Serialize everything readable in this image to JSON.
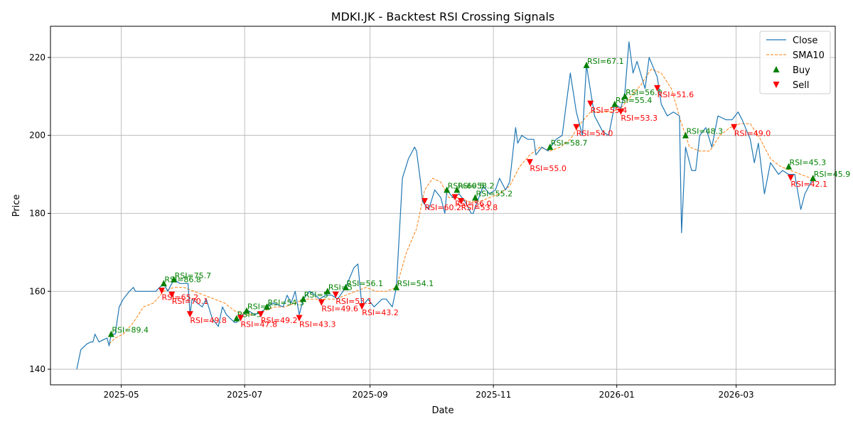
{
  "chart_data": {
    "type": "line",
    "title": "MDKI.JK - Backtest RSI Crossing Signals",
    "xlabel": "Date",
    "ylabel": "Price",
    "xlim": [
      "2025-03-27",
      "2026-04-19"
    ],
    "ylim": [
      136,
      228
    ],
    "x_ticks": [
      {
        "date": "2025-05-01",
        "label": "2025-05"
      },
      {
        "date": "2025-07-01",
        "label": "2025-07"
      },
      {
        "date": "2025-09-01",
        "label": "2025-09"
      },
      {
        "date": "2025-11-01",
        "label": "2025-11"
      },
      {
        "date": "2026-01-01",
        "label": "2026-01"
      },
      {
        "date": "2026-03-01",
        "label": "2026-03"
      }
    ],
    "y_ticks": [
      140,
      160,
      180,
      200,
      220
    ],
    "grid": true,
    "legend_position": "top-right",
    "legend": [
      "Close",
      "SMA10",
      "Buy",
      "Sell"
    ],
    "colors": {
      "close": "#1f77b4",
      "sma": "#ff7f0e",
      "buy": "#008000",
      "sell": "#ff0000"
    },
    "series": [
      {
        "name": "Close",
        "points": [
          [
            "2025-04-09",
            140
          ],
          [
            "2025-04-11",
            145
          ],
          [
            "2025-04-14",
            146.5
          ],
          [
            "2025-04-16",
            147
          ],
          [
            "2025-04-17",
            147
          ],
          [
            "2025-04-18",
            149
          ],
          [
            "2025-04-20",
            147
          ],
          [
            "2025-04-24",
            148
          ],
          [
            "2025-04-25",
            146
          ],
          [
            "2025-04-26",
            149
          ],
          [
            "2025-04-28",
            149
          ],
          [
            "2025-04-30",
            156
          ],
          [
            "2025-05-02",
            158
          ],
          [
            "2025-05-05",
            160
          ],
          [
            "2025-05-07",
            161
          ],
          [
            "2025-05-08",
            160
          ],
          [
            "2025-05-15",
            160
          ],
          [
            "2025-05-18",
            160
          ],
          [
            "2025-05-20",
            161
          ],
          [
            "2025-05-22",
            162
          ],
          [
            "2025-05-24",
            160
          ],
          [
            "2025-05-27",
            163
          ],
          [
            "2025-05-30",
            162
          ],
          [
            "2025-06-03",
            162
          ],
          [
            "2025-06-04",
            154
          ],
          [
            "2025-06-05",
            158
          ],
          [
            "2025-06-10",
            156
          ],
          [
            "2025-06-12",
            158
          ],
          [
            "2025-06-15",
            153
          ],
          [
            "2025-06-18",
            151
          ],
          [
            "2025-06-20",
            156
          ],
          [
            "2025-06-22",
            154
          ],
          [
            "2025-06-26",
            152
          ],
          [
            "2025-06-27",
            152
          ],
          [
            "2025-06-30",
            154
          ],
          [
            "2025-07-03",
            155
          ],
          [
            "2025-07-06",
            154
          ],
          [
            "2025-07-10",
            155
          ],
          [
            "2025-07-15",
            157
          ],
          [
            "2025-07-20",
            156
          ],
          [
            "2025-07-22",
            159
          ],
          [
            "2025-07-24",
            157
          ],
          [
            "2025-07-26",
            160
          ],
          [
            "2025-07-28",
            154
          ],
          [
            "2025-07-30",
            158
          ],
          [
            "2025-08-02",
            160
          ],
          [
            "2025-08-05",
            159
          ],
          [
            "2025-08-07",
            158
          ],
          [
            "2025-08-10",
            159
          ],
          [
            "2025-08-13",
            159
          ],
          [
            "2025-08-16",
            158
          ],
          [
            "2025-08-20",
            161
          ],
          [
            "2025-08-24",
            166
          ],
          [
            "2025-08-26",
            167
          ],
          [
            "2025-08-28",
            156
          ],
          [
            "2025-08-31",
            158
          ],
          [
            "2025-09-03",
            156
          ],
          [
            "2025-09-07",
            158
          ],
          [
            "2025-09-09",
            158
          ],
          [
            "2025-09-12",
            156
          ],
          [
            "2025-09-14",
            161
          ],
          [
            "2025-09-17",
            189
          ],
          [
            "2025-09-20",
            194
          ],
          [
            "2025-09-23",
            197
          ],
          [
            "2025-09-24",
            196
          ],
          [
            "2025-09-26",
            188
          ],
          [
            "2025-09-27",
            183
          ],
          [
            "2025-09-30",
            181
          ],
          [
            "2025-10-03",
            186
          ],
          [
            "2025-10-06",
            184
          ],
          [
            "2025-10-08",
            180
          ],
          [
            "2025-10-09",
            186
          ],
          [
            "2025-10-12",
            184
          ],
          [
            "2025-10-15",
            185
          ],
          [
            "2025-10-18",
            183
          ],
          [
            "2025-10-21",
            180
          ],
          [
            "2025-10-22",
            180
          ],
          [
            "2025-10-24",
            183
          ],
          [
            "2025-10-27",
            187
          ],
          [
            "2025-10-30",
            185
          ],
          [
            "2025-11-02",
            186
          ],
          [
            "2025-11-04",
            189
          ],
          [
            "2025-11-07",
            186
          ],
          [
            "2025-11-09",
            188
          ],
          [
            "2025-11-12",
            202
          ],
          [
            "2025-11-13",
            198
          ],
          [
            "2025-11-15",
            200
          ],
          [
            "2025-11-18",
            199
          ],
          [
            "2025-11-21",
            199
          ],
          [
            "2025-11-22",
            195
          ],
          [
            "2025-11-25",
            197
          ],
          [
            "2025-11-28",
            196
          ],
          [
            "2025-12-02",
            199
          ],
          [
            "2025-12-05",
            200
          ],
          [
            "2025-12-09",
            216
          ],
          [
            "2025-12-12",
            206
          ],
          [
            "2025-12-15",
            200
          ],
          [
            "2025-12-17",
            218
          ],
          [
            "2025-12-21",
            205
          ],
          [
            "2025-12-25",
            201
          ],
          [
            "2025-12-28",
            200
          ],
          [
            "2025-12-31",
            208
          ],
          [
            "2026-01-03",
            207
          ],
          [
            "2026-01-05",
            211
          ],
          [
            "2026-01-07",
            224
          ],
          [
            "2026-01-09",
            216
          ],
          [
            "2026-01-11",
            219
          ],
          [
            "2026-01-15",
            212
          ],
          [
            "2026-01-17",
            220
          ],
          [
            "2026-01-21",
            215
          ],
          [
            "2026-01-23",
            208
          ],
          [
            "2026-01-26",
            205
          ],
          [
            "2026-01-29",
            206
          ],
          [
            "2026-02-01",
            205
          ],
          [
            "2026-02-02",
            175
          ],
          [
            "2026-02-04",
            197
          ],
          [
            "2026-02-07",
            191
          ],
          [
            "2026-02-09",
            191
          ],
          [
            "2026-02-11",
            200
          ],
          [
            "2026-02-14",
            202
          ],
          [
            "2026-02-17",
            197
          ],
          [
            "2026-02-20",
            205
          ],
          [
            "2026-02-24",
            204
          ],
          [
            "2026-02-27",
            204
          ],
          [
            "2026-03-02",
            206
          ],
          [
            "2026-03-04",
            204
          ],
          [
            "2026-03-08",
            199
          ],
          [
            "2026-03-10",
            193
          ],
          [
            "2026-03-12",
            198
          ],
          [
            "2026-03-15",
            185
          ],
          [
            "2026-03-18",
            193
          ],
          [
            "2026-03-22",
            190
          ],
          [
            "2026-03-24",
            191
          ],
          [
            "2026-03-27",
            190
          ],
          [
            "2026-03-30",
            190
          ],
          [
            "2026-04-02",
            181
          ],
          [
            "2026-04-04",
            185
          ],
          [
            "2026-04-08",
            189
          ]
        ]
      },
      {
        "name": "SMA10",
        "points": [
          [
            "2025-04-25",
            146.5
          ],
          [
            "2025-04-28",
            148
          ],
          [
            "2025-05-02",
            149
          ],
          [
            "2025-05-07",
            152
          ],
          [
            "2025-05-12",
            156
          ],
          [
            "2025-05-17",
            157
          ],
          [
            "2025-05-22",
            160
          ],
          [
            "2025-05-27",
            161
          ],
          [
            "2025-06-01",
            161
          ],
          [
            "2025-06-06",
            160
          ],
          [
            "2025-06-11",
            159
          ],
          [
            "2025-06-16",
            158
          ],
          [
            "2025-06-21",
            157
          ],
          [
            "2025-06-26",
            155
          ],
          [
            "2025-07-01",
            154
          ],
          [
            "2025-07-06",
            154
          ],
          [
            "2025-07-11",
            155
          ],
          [
            "2025-07-16",
            156
          ],
          [
            "2025-07-21",
            156
          ],
          [
            "2025-07-26",
            157
          ],
          [
            "2025-07-31",
            158
          ],
          [
            "2025-08-05",
            158
          ],
          [
            "2025-08-10",
            158
          ],
          [
            "2025-08-15",
            158
          ],
          [
            "2025-08-20",
            159
          ],
          [
            "2025-08-25",
            160
          ],
          [
            "2025-08-30",
            161
          ],
          [
            "2025-09-04",
            160
          ],
          [
            "2025-09-09",
            160
          ],
          [
            "2025-09-14",
            161
          ],
          [
            "2025-09-19",
            170
          ],
          [
            "2025-09-24",
            176
          ],
          [
            "2025-09-28",
            186
          ],
          [
            "2025-10-02",
            189
          ],
          [
            "2025-10-06",
            188
          ],
          [
            "2025-10-10",
            184
          ],
          [
            "2025-10-15",
            184
          ],
          [
            "2025-10-20",
            183
          ],
          [
            "2025-10-25",
            183
          ],
          [
            "2025-10-30",
            184
          ],
          [
            "2025-11-04",
            185
          ],
          [
            "2025-11-09",
            187
          ],
          [
            "2025-11-14",
            192
          ],
          [
            "2025-11-19",
            195
          ],
          [
            "2025-11-24",
            197
          ],
          [
            "2025-11-29",
            196
          ],
          [
            "2025-12-04",
            197
          ],
          [
            "2025-12-09",
            199
          ],
          [
            "2025-12-14",
            203
          ],
          [
            "2025-12-19",
            206
          ],
          [
            "2025-12-24",
            206
          ],
          [
            "2025-12-29",
            206
          ],
          [
            "2026-01-03",
            207
          ],
          [
            "2026-01-08",
            210
          ],
          [
            "2026-01-13",
            213
          ],
          [
            "2026-01-18",
            217
          ],
          [
            "2026-01-23",
            216
          ],
          [
            "2026-01-28",
            212
          ],
          [
            "2026-02-02",
            203
          ],
          [
            "2026-02-06",
            197
          ],
          [
            "2026-02-11",
            196
          ],
          [
            "2026-02-16",
            196
          ],
          [
            "2026-02-21",
            200
          ],
          [
            "2026-02-26",
            202
          ],
          [
            "2026-03-03",
            203
          ],
          [
            "2026-03-08",
            203
          ],
          [
            "2026-03-13",
            199
          ],
          [
            "2026-03-18",
            194
          ],
          [
            "2026-03-23",
            192
          ],
          [
            "2026-03-28",
            191
          ],
          [
            "2026-04-02",
            190
          ],
          [
            "2026-04-07",
            189
          ]
        ]
      },
      {
        "name": "Buy",
        "points": [
          [
            "2025-04-26",
            149,
            "RSI=89.4"
          ],
          [
            "2025-05-22",
            162,
            "RSI=86.8"
          ],
          [
            "2025-05-27",
            163,
            "RSI=75.7"
          ],
          [
            "2025-06-27",
            153,
            "RSI=5"
          ],
          [
            "2025-07-02",
            155,
            "RSI=6"
          ],
          [
            "2025-07-12",
            156,
            "RSI=54.3"
          ],
          [
            "2025-07-30",
            158,
            "RSI=5"
          ],
          [
            "2025-08-11",
            160,
            "RSI=5"
          ],
          [
            "2025-08-20",
            161,
            "RSI=56.1"
          ],
          [
            "2025-09-14",
            161,
            "RSI=54.1"
          ],
          [
            "2025-10-09",
            186,
            "RSI=60.5"
          ],
          [
            "2025-10-14",
            186,
            "RSI=58.2"
          ],
          [
            "2025-10-23",
            184,
            "RSI=55.2"
          ],
          [
            "2025-11-29",
            197,
            "RSI=58.7"
          ],
          [
            "2025-12-17",
            218,
            "RSI=67.1"
          ],
          [
            "2025-12-31",
            208,
            "RSI=55.4"
          ],
          [
            "2026-01-05",
            210,
            "RSI=56.0"
          ],
          [
            "2026-02-04",
            200,
            "RSI=48.3"
          ],
          [
            "2026-03-27",
            192,
            "RSI=45.3"
          ],
          [
            "2026-04-08",
            189,
            "RSI=45.9"
          ]
        ]
      },
      {
        "name": "Sell",
        "points": [
          [
            "2025-05-21",
            160,
            "RSI=65.2"
          ],
          [
            "2025-05-26",
            159,
            "RSI=70.1"
          ],
          [
            "2025-06-04",
            154,
            "RSI=49.8"
          ],
          [
            "2025-06-29",
            153,
            "RSI=47.8"
          ],
          [
            "2025-07-09",
            154,
            "RSI=49.2"
          ],
          [
            "2025-07-28",
            153,
            "RSI=43.3"
          ],
          [
            "2025-08-08",
            157,
            "RSI=49.6"
          ],
          [
            "2025-08-15",
            159,
            "RSI=53.1"
          ],
          [
            "2025-08-28",
            156,
            "RSI=43.2"
          ],
          [
            "2025-09-28",
            183,
            "RSI=60.2"
          ],
          [
            "2025-10-13",
            184,
            "RSI=56.0"
          ],
          [
            "2025-10-16",
            183,
            "RSI=53.8"
          ],
          [
            "2025-11-19",
            193,
            "RSI=55.0"
          ],
          [
            "2025-12-12",
            202,
            "RSI=54.0"
          ],
          [
            "2025-12-19",
            208,
            "RSI=55.4"
          ],
          [
            "2026-01-03",
            206,
            "RSI=53.3"
          ],
          [
            "2026-01-21",
            212,
            "RSI=51.6"
          ],
          [
            "2026-02-28",
            202,
            "RSI=49.0"
          ],
          [
            "2026-03-28",
            189,
            "RSI=42.1"
          ]
        ]
      }
    ]
  }
}
